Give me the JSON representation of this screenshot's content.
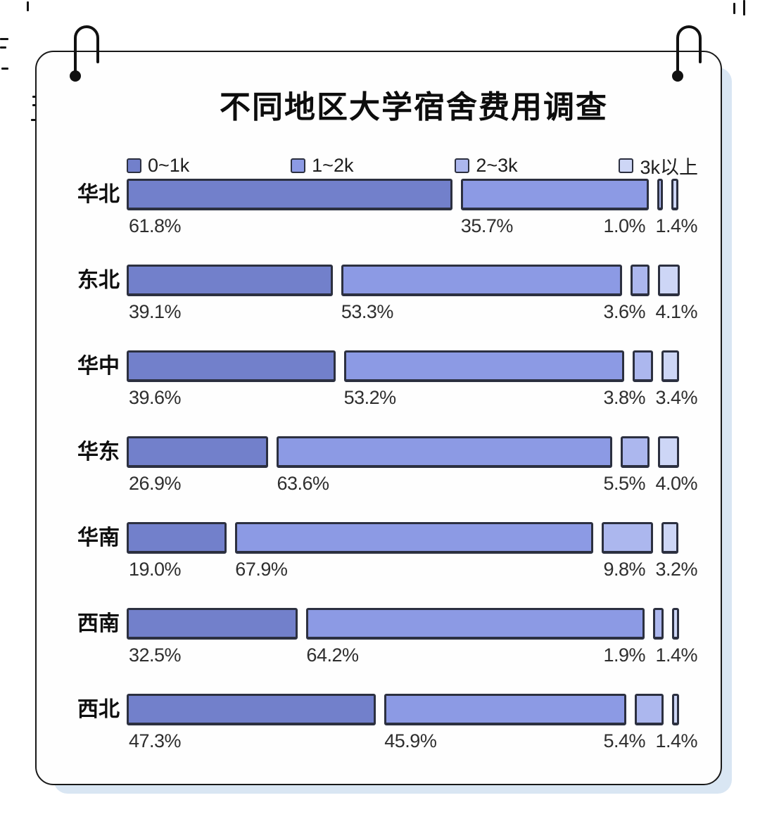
{
  "page": {
    "background": "#ffffff"
  },
  "card": {
    "background": "#fefefe",
    "border_color": "#191919",
    "shadow_color": "#d9e6f3"
  },
  "chart_data": {
    "type": "bar",
    "orientation": "horizontal-stacked",
    "title": "不同地区大学宿舍费用调查",
    "legend_position": "top",
    "xlim": [
      0,
      100
    ],
    "value_suffix": "%",
    "categories": [
      "华北",
      "东北",
      "华中",
      "华东",
      "华南",
      "西南",
      "西北"
    ],
    "series": [
      {
        "name": "0~1k",
        "color": "#7280cb",
        "values": [
          61.8,
          39.1,
          39.6,
          26.9,
          19.0,
          32.5,
          47.3
        ]
      },
      {
        "name": "1~2k",
        "color": "#8c9ae4",
        "values": [
          35.7,
          53.3,
          53.2,
          63.6,
          67.9,
          64.2,
          45.9
        ]
      },
      {
        "name": "2~3k",
        "color": "#acb7ee",
        "values": [
          1.0,
          3.6,
          3.8,
          5.5,
          9.8,
          1.9,
          5.4
        ]
      },
      {
        "name": "3k以上",
        "color": "#cdd6f6",
        "values": [
          1.4,
          4.1,
          3.4,
          4.0,
          3.2,
          1.4,
          1.4
        ]
      }
    ],
    "bar_border_color": "#2c3040",
    "label_color": "#2e2e2e"
  }
}
